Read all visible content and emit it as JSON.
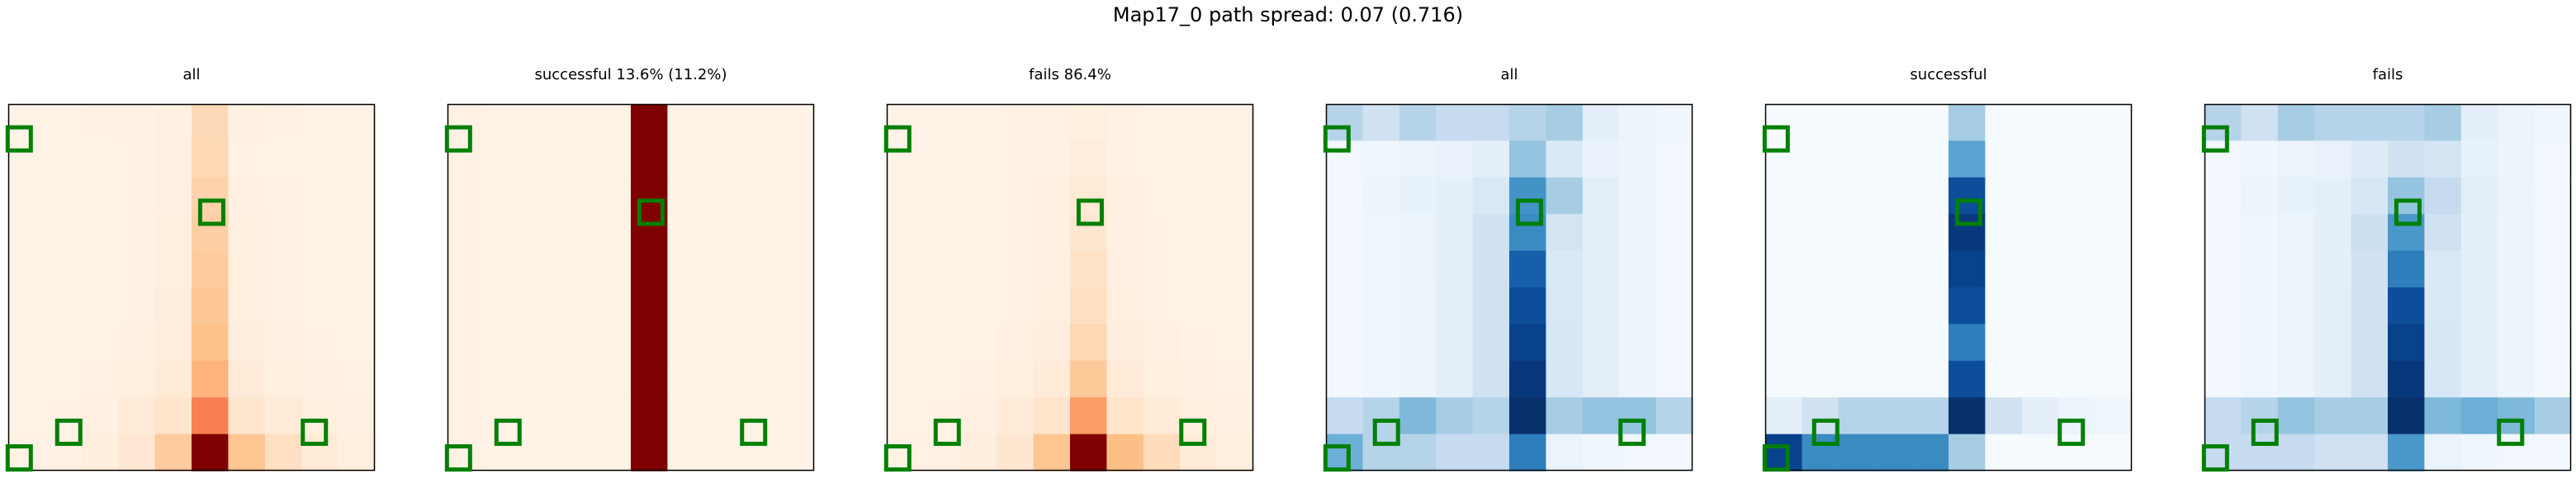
{
  "figure": {
    "suptitle": "Map17_0 path spread: 0.07 (0.716)"
  },
  "chart_data": [
    {
      "type": "heatmap",
      "title": "all",
      "colormap": "Reds",
      "grid_size": [
        10,
        10
      ],
      "vmax": 1.0,
      "values": [
        [
          0.02,
          0.02,
          0.03,
          0.03,
          0.04,
          0.2,
          0.04,
          0.03,
          0.02,
          0.02
        ],
        [
          0.02,
          0.02,
          0.02,
          0.03,
          0.04,
          0.21,
          0.03,
          0.02,
          0.02,
          0.02
        ],
        [
          0.02,
          0.02,
          0.02,
          0.03,
          0.04,
          0.23,
          0.04,
          0.03,
          0.02,
          0.02
        ],
        [
          0.02,
          0.02,
          0.02,
          0.03,
          0.05,
          0.25,
          0.05,
          0.03,
          0.02,
          0.02
        ],
        [
          0.02,
          0.02,
          0.02,
          0.03,
          0.05,
          0.27,
          0.05,
          0.03,
          0.02,
          0.02
        ],
        [
          0.02,
          0.02,
          0.02,
          0.03,
          0.06,
          0.29,
          0.05,
          0.03,
          0.02,
          0.02
        ],
        [
          0.02,
          0.02,
          0.02,
          0.04,
          0.07,
          0.32,
          0.06,
          0.04,
          0.03,
          0.02
        ],
        [
          0.02,
          0.02,
          0.03,
          0.05,
          0.09,
          0.37,
          0.08,
          0.05,
          0.04,
          0.03
        ],
        [
          0.02,
          0.03,
          0.04,
          0.08,
          0.13,
          0.56,
          0.12,
          0.08,
          0.05,
          0.04
        ],
        [
          0.03,
          0.03,
          0.06,
          0.1,
          0.27,
          1.0,
          0.3,
          0.17,
          0.08,
          0.05
        ]
      ],
      "markers": [
        [
          0.3,
          0.95
        ],
        [
          5.55,
          2.95
        ],
        [
          1.65,
          8.95
        ],
        [
          8.35,
          8.95
        ],
        [
          0.3,
          9.65
        ]
      ]
    },
    {
      "type": "heatmap",
      "title": "successful 13.6% (11.2%)",
      "colormap": "Reds",
      "grid_size": [
        10,
        10
      ],
      "vmax": 1.0,
      "values": [
        [
          0.03,
          0.02,
          0.02,
          0.02,
          0.02,
          1.0,
          0.02,
          0.02,
          0.02,
          0.02
        ],
        [
          0.03,
          0.02,
          0.02,
          0.02,
          0.02,
          1.0,
          0.02,
          0.02,
          0.02,
          0.02
        ],
        [
          0.03,
          0.02,
          0.02,
          0.02,
          0.02,
          1.0,
          0.02,
          0.02,
          0.02,
          0.02
        ],
        [
          0.03,
          0.02,
          0.02,
          0.02,
          0.02,
          1.0,
          0.02,
          0.02,
          0.02,
          0.02
        ],
        [
          0.03,
          0.02,
          0.02,
          0.02,
          0.02,
          1.0,
          0.02,
          0.02,
          0.02,
          0.02
        ],
        [
          0.03,
          0.02,
          0.02,
          0.02,
          0.02,
          1.0,
          0.02,
          0.02,
          0.02,
          0.02
        ],
        [
          0.03,
          0.02,
          0.02,
          0.02,
          0.02,
          1.0,
          0.02,
          0.02,
          0.02,
          0.02
        ],
        [
          0.03,
          0.02,
          0.02,
          0.02,
          0.02,
          1.0,
          0.02,
          0.02,
          0.02,
          0.02
        ],
        [
          0.03,
          0.02,
          0.02,
          0.02,
          0.02,
          1.0,
          0.02,
          0.02,
          0.02,
          0.02
        ],
        [
          0.03,
          0.02,
          0.02,
          0.02,
          0.02,
          1.0,
          0.02,
          0.02,
          0.02,
          0.02
        ]
      ],
      "markers": [
        [
          0.3,
          0.95
        ],
        [
          5.55,
          2.95
        ],
        [
          1.65,
          8.95
        ],
        [
          8.35,
          8.95
        ],
        [
          0.3,
          9.65
        ]
      ]
    },
    {
      "type": "heatmap",
      "title": "fails 86.4%",
      "colormap": "Reds",
      "grid_size": [
        10,
        10
      ],
      "vmax": 1.0,
      "values": [
        [
          0.02,
          0.02,
          0.02,
          0.03,
          0.03,
          0.05,
          0.03,
          0.02,
          0.02,
          0.02
        ],
        [
          0.02,
          0.02,
          0.02,
          0.03,
          0.03,
          0.07,
          0.03,
          0.02,
          0.02,
          0.02
        ],
        [
          0.02,
          0.02,
          0.02,
          0.03,
          0.04,
          0.09,
          0.04,
          0.02,
          0.02,
          0.02
        ],
        [
          0.02,
          0.02,
          0.02,
          0.03,
          0.04,
          0.11,
          0.04,
          0.03,
          0.02,
          0.02
        ],
        [
          0.02,
          0.02,
          0.02,
          0.03,
          0.04,
          0.14,
          0.04,
          0.03,
          0.02,
          0.02
        ],
        [
          0.02,
          0.02,
          0.02,
          0.03,
          0.05,
          0.17,
          0.05,
          0.03,
          0.02,
          0.02
        ],
        [
          0.02,
          0.02,
          0.02,
          0.04,
          0.06,
          0.21,
          0.06,
          0.04,
          0.03,
          0.02
        ],
        [
          0.02,
          0.02,
          0.03,
          0.05,
          0.08,
          0.28,
          0.08,
          0.05,
          0.04,
          0.03
        ],
        [
          0.02,
          0.03,
          0.04,
          0.08,
          0.13,
          0.45,
          0.13,
          0.08,
          0.05,
          0.04
        ],
        [
          0.03,
          0.03,
          0.06,
          0.11,
          0.3,
          1.0,
          0.33,
          0.19,
          0.08,
          0.05
        ]
      ],
      "markers": [
        [
          0.3,
          0.95
        ],
        [
          5.55,
          2.95
        ],
        [
          1.65,
          8.95
        ],
        [
          8.35,
          8.95
        ],
        [
          0.3,
          9.65
        ]
      ]
    },
    {
      "type": "heatmap",
      "title": "all",
      "colormap": "Blues",
      "grid_size": [
        10,
        10
      ],
      "vmax": 1.0,
      "values": [
        [
          0.3,
          0.2,
          0.3,
          0.25,
          0.25,
          0.3,
          0.35,
          0.1,
          0.06,
          0.04
        ],
        [
          0.03,
          0.04,
          0.06,
          0.07,
          0.1,
          0.4,
          0.14,
          0.07,
          0.05,
          0.03
        ],
        [
          0.03,
          0.05,
          0.08,
          0.09,
          0.15,
          0.62,
          0.35,
          0.1,
          0.06,
          0.03
        ],
        [
          0.02,
          0.04,
          0.06,
          0.09,
          0.2,
          0.65,
          0.18,
          0.09,
          0.05,
          0.03
        ],
        [
          0.02,
          0.04,
          0.06,
          0.09,
          0.2,
          0.8,
          0.15,
          0.09,
          0.05,
          0.03
        ],
        [
          0.02,
          0.04,
          0.06,
          0.1,
          0.2,
          0.85,
          0.15,
          0.09,
          0.05,
          0.03
        ],
        [
          0.02,
          0.04,
          0.06,
          0.1,
          0.2,
          0.9,
          0.16,
          0.09,
          0.05,
          0.03
        ],
        [
          0.02,
          0.04,
          0.06,
          0.1,
          0.2,
          0.95,
          0.16,
          0.09,
          0.05,
          0.03
        ],
        [
          0.25,
          0.3,
          0.45,
          0.35,
          0.3,
          1.0,
          0.35,
          0.4,
          0.4,
          0.3
        ],
        [
          0.5,
          0.3,
          0.3,
          0.25,
          0.25,
          0.7,
          0.06,
          0.04,
          0.03,
          0.02
        ]
      ],
      "markers": [
        [
          0.3,
          0.95
        ],
        [
          5.55,
          2.95
        ],
        [
          1.65,
          8.95
        ],
        [
          8.35,
          8.95
        ],
        [
          0.3,
          9.65
        ]
      ]
    },
    {
      "type": "heatmap",
      "title": "successful",
      "colormap": "Blues",
      "grid_size": [
        10,
        10
      ],
      "vmax": 1.0,
      "values": [
        [
          0.01,
          0.01,
          0.01,
          0.01,
          0.01,
          0.35,
          0.01,
          0.01,
          0.01,
          0.01
        ],
        [
          0.01,
          0.01,
          0.01,
          0.01,
          0.01,
          0.55,
          0.01,
          0.01,
          0.01,
          0.01
        ],
        [
          0.01,
          0.01,
          0.01,
          0.01,
          0.01,
          0.85,
          0.01,
          0.01,
          0.01,
          0.01
        ],
        [
          0.01,
          0.01,
          0.01,
          0.01,
          0.01,
          0.95,
          0.01,
          0.01,
          0.01,
          0.01
        ],
        [
          0.01,
          0.01,
          0.01,
          0.01,
          0.01,
          0.9,
          0.01,
          0.01,
          0.01,
          0.01
        ],
        [
          0.01,
          0.01,
          0.01,
          0.01,
          0.01,
          0.85,
          0.01,
          0.01,
          0.01,
          0.01
        ],
        [
          0.01,
          0.01,
          0.01,
          0.01,
          0.01,
          0.7,
          0.01,
          0.01,
          0.01,
          0.01
        ],
        [
          0.01,
          0.01,
          0.01,
          0.01,
          0.01,
          0.85,
          0.01,
          0.01,
          0.01,
          0.01
        ],
        [
          0.1,
          0.2,
          0.3,
          0.3,
          0.3,
          1.0,
          0.2,
          0.1,
          0.06,
          0.04
        ],
        [
          0.9,
          0.65,
          0.65,
          0.65,
          0.65,
          0.35,
          0.01,
          0.01,
          0.01,
          0.01
        ]
      ],
      "markers": [
        [
          0.3,
          0.95
        ],
        [
          5.55,
          2.95
        ],
        [
          1.65,
          8.95
        ],
        [
          8.35,
          8.95
        ],
        [
          0.3,
          9.65
        ]
      ]
    },
    {
      "type": "heatmap",
      "title": "fails",
      "colormap": "Blues",
      "grid_size": [
        10,
        10
      ],
      "vmax": 1.0,
      "values": [
        [
          0.3,
          0.2,
          0.35,
          0.3,
          0.3,
          0.3,
          0.35,
          0.1,
          0.06,
          0.04
        ],
        [
          0.03,
          0.04,
          0.06,
          0.07,
          0.12,
          0.2,
          0.18,
          0.08,
          0.05,
          0.03
        ],
        [
          0.03,
          0.05,
          0.08,
          0.09,
          0.16,
          0.4,
          0.25,
          0.1,
          0.06,
          0.03
        ],
        [
          0.02,
          0.04,
          0.06,
          0.09,
          0.22,
          0.6,
          0.2,
          0.09,
          0.05,
          0.03
        ],
        [
          0.02,
          0.04,
          0.06,
          0.09,
          0.2,
          0.7,
          0.15,
          0.09,
          0.05,
          0.03
        ],
        [
          0.02,
          0.04,
          0.06,
          0.1,
          0.2,
          0.85,
          0.15,
          0.09,
          0.05,
          0.03
        ],
        [
          0.02,
          0.04,
          0.06,
          0.1,
          0.2,
          0.9,
          0.16,
          0.09,
          0.05,
          0.03
        ],
        [
          0.02,
          0.04,
          0.06,
          0.1,
          0.2,
          0.95,
          0.16,
          0.09,
          0.05,
          0.03
        ],
        [
          0.25,
          0.3,
          0.4,
          0.35,
          0.35,
          1.0,
          0.45,
          0.5,
          0.45,
          0.35
        ],
        [
          0.25,
          0.25,
          0.25,
          0.2,
          0.2,
          0.6,
          0.06,
          0.04,
          0.03,
          0.02
        ]
      ],
      "markers": [
        [
          0.3,
          0.95
        ],
        [
          5.55,
          2.95
        ],
        [
          1.65,
          8.95
        ],
        [
          8.35,
          8.95
        ],
        [
          0.3,
          9.65
        ]
      ]
    }
  ]
}
